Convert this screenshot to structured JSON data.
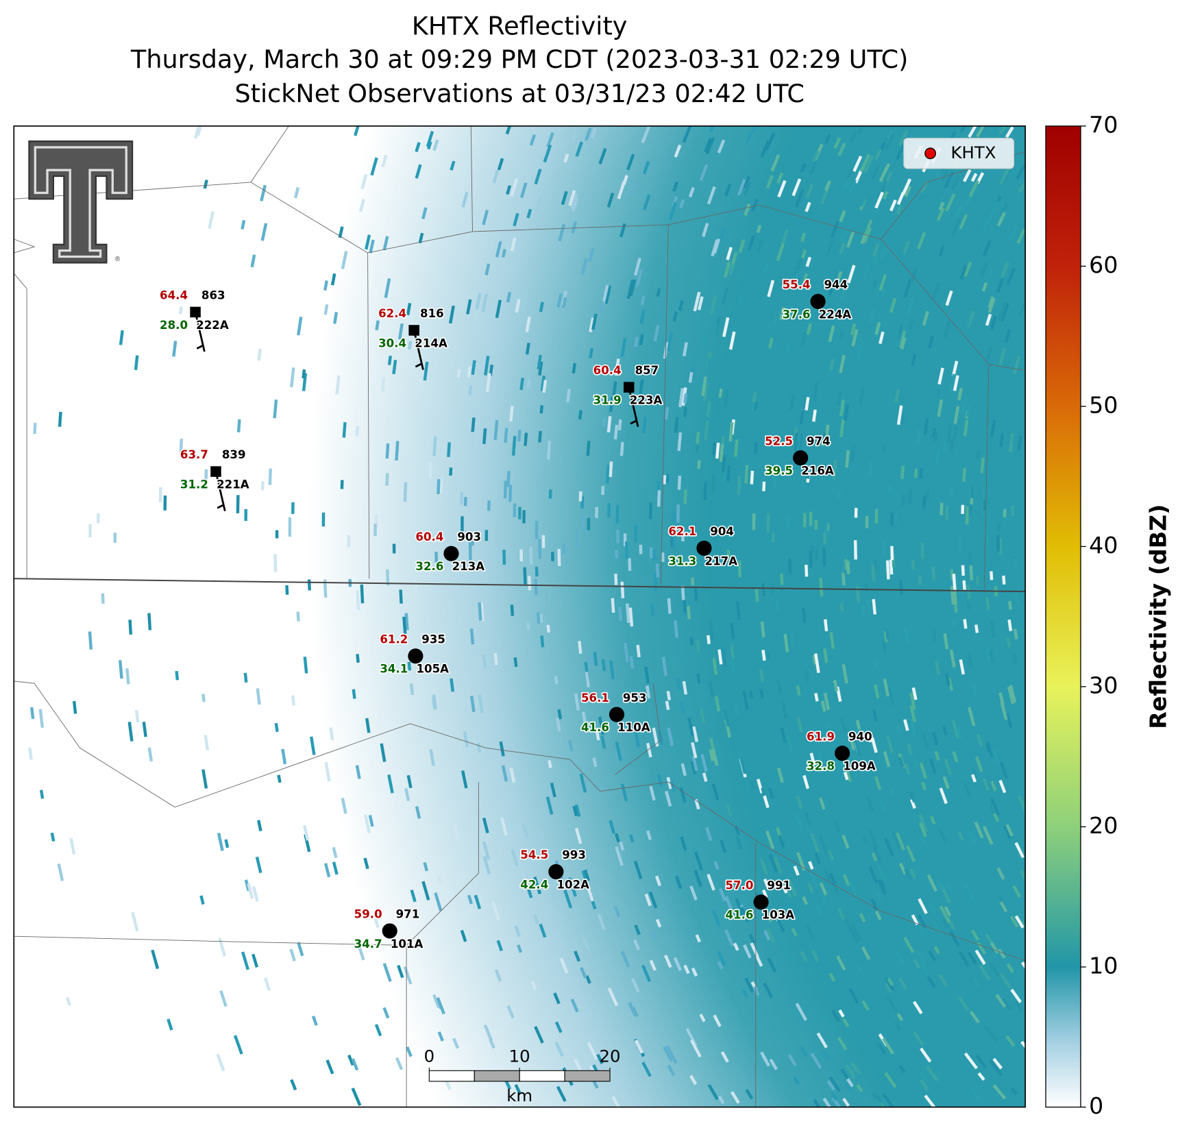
{
  "title": [
    "KHTX Reflectivity",
    "Thursday, March 30 at 09:29 PM CDT (2023-03-31 02:29 UTC)",
    "StickNet Observations at 03/31/23 02:42 UTC"
  ],
  "legend": {
    "label": "KHTX",
    "color": "#e00000"
  },
  "logo": {
    "mark": "®"
  },
  "colorbar": {
    "label": "Reflectivity (dBZ)",
    "lim": [
      0,
      70
    ],
    "ticks": [
      0,
      10,
      20,
      30,
      40,
      50,
      60,
      70
    ]
  },
  "scale_bar": {
    "ticks": [
      0,
      10,
      20
    ],
    "unit": "km"
  },
  "stations": [
    {
      "id": "222A",
      "temperature": "64.4",
      "dewpoint": "28.0",
      "pressure": "863",
      "marker": "square"
    },
    {
      "id": "221A",
      "temperature": "63.7",
      "dewpoint": "31.2",
      "pressure": "839",
      "marker": "square"
    },
    {
      "id": "214A",
      "temperature": "62.4",
      "dewpoint": "30.4",
      "pressure": "816",
      "marker": "square"
    },
    {
      "id": "223A",
      "temperature": "60.4",
      "dewpoint": "31.9",
      "pressure": "857",
      "marker": "square"
    },
    {
      "id": "224A",
      "temperature": "55.4",
      "dewpoint": "37.6",
      "pressure": "944",
      "marker": "circle"
    },
    {
      "id": "216A",
      "temperature": "52.5",
      "dewpoint": "39.5",
      "pressure": "974",
      "marker": "circle"
    },
    {
      "id": "213A",
      "temperature": "60.4",
      "dewpoint": "32.6",
      "pressure": "903",
      "marker": "circle"
    },
    {
      "id": "217A",
      "temperature": "62.1",
      "dewpoint": "31.3",
      "pressure": "904",
      "marker": "circle"
    },
    {
      "id": "105A",
      "temperature": "61.2",
      "dewpoint": "34.1",
      "pressure": "935",
      "marker": "circle"
    },
    {
      "id": "110A",
      "temperature": "56.1",
      "dewpoint": "41.6",
      "pressure": "953",
      "marker": "circle"
    },
    {
      "id": "109A",
      "temperature": "61.9",
      "dewpoint": "32.8",
      "pressure": "940",
      "marker": "circle"
    },
    {
      "id": "102A",
      "temperature": "54.5",
      "dewpoint": "42.4",
      "pressure": "993",
      "marker": "circle"
    },
    {
      "id": "103A",
      "temperature": "57.0",
      "dewpoint": "41.6",
      "pressure": "991",
      "marker": "circle"
    },
    {
      "id": "101A",
      "temperature": "59.0",
      "dewpoint": "34.7",
      "pressure": "971",
      "marker": "circle"
    }
  ]
}
